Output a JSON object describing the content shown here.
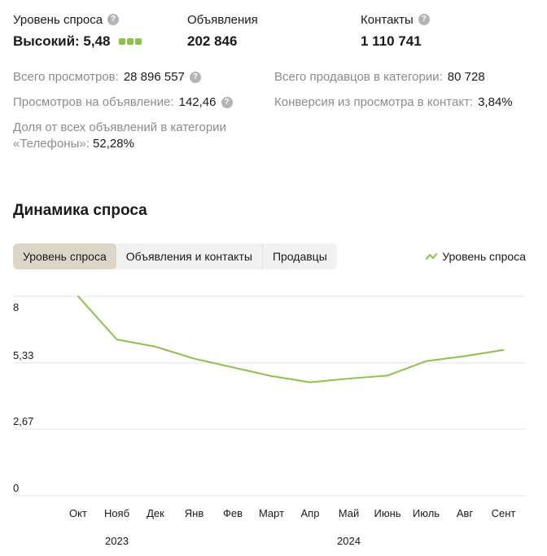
{
  "stats": {
    "demand": {
      "label": "Уровень спроса",
      "value": "Высокий: 5,48",
      "level": 3,
      "level_max": 3,
      "color": "#8bc34a"
    },
    "ads": {
      "label": "Объявления",
      "value": "202 846"
    },
    "contacts": {
      "label": "Контакты",
      "value": "1 110 741"
    }
  },
  "help_glyph": "?",
  "metrics": {
    "views_total": {
      "label": "Всего просмотров:",
      "value": "28 896 557"
    },
    "sellers": {
      "label": "Всего продавцов в категории:",
      "value": "80 728"
    },
    "views_per_ad": {
      "label": "Просмотров на объявление:",
      "value": "142,46"
    },
    "conversion": {
      "label": "Конверсия из просмотра в контакт:",
      "value": "3,84%"
    },
    "share": {
      "label": "Доля от всех объявлений в категории «Телефоны»:",
      "value": "52,28%"
    }
  },
  "section_title": "Динамика спроса",
  "tabs": [
    {
      "label": "Уровень спроса",
      "active": true
    },
    {
      "label": "Объявления и контакты",
      "active": false
    },
    {
      "label": "Продавцы",
      "active": false
    }
  ],
  "legend": {
    "label": "Уровень спроса"
  },
  "chart_data": {
    "type": "line",
    "x": [
      "Окт",
      "Нояб",
      "Дек",
      "Янв",
      "Фев",
      "Март",
      "Апр",
      "Май",
      "Июнь",
      "Июль",
      "Авг",
      "Сент"
    ],
    "year_labels": [
      "2023",
      "2024"
    ],
    "yticks": [
      "8",
      "5,33",
      "2,67",
      "0"
    ],
    "ytick_values": [
      8,
      5.33,
      2.67,
      0
    ],
    "ylim": [
      0,
      8
    ],
    "series": [
      {
        "name": "Уровень спроса",
        "color": "#8bc34a",
        "values": [
          8.0,
          6.27,
          5.98,
          5.5,
          5.15,
          4.8,
          4.55,
          4.7,
          4.82,
          5.4,
          5.6,
          5.85
        ]
      }
    ],
    "grid": true
  }
}
